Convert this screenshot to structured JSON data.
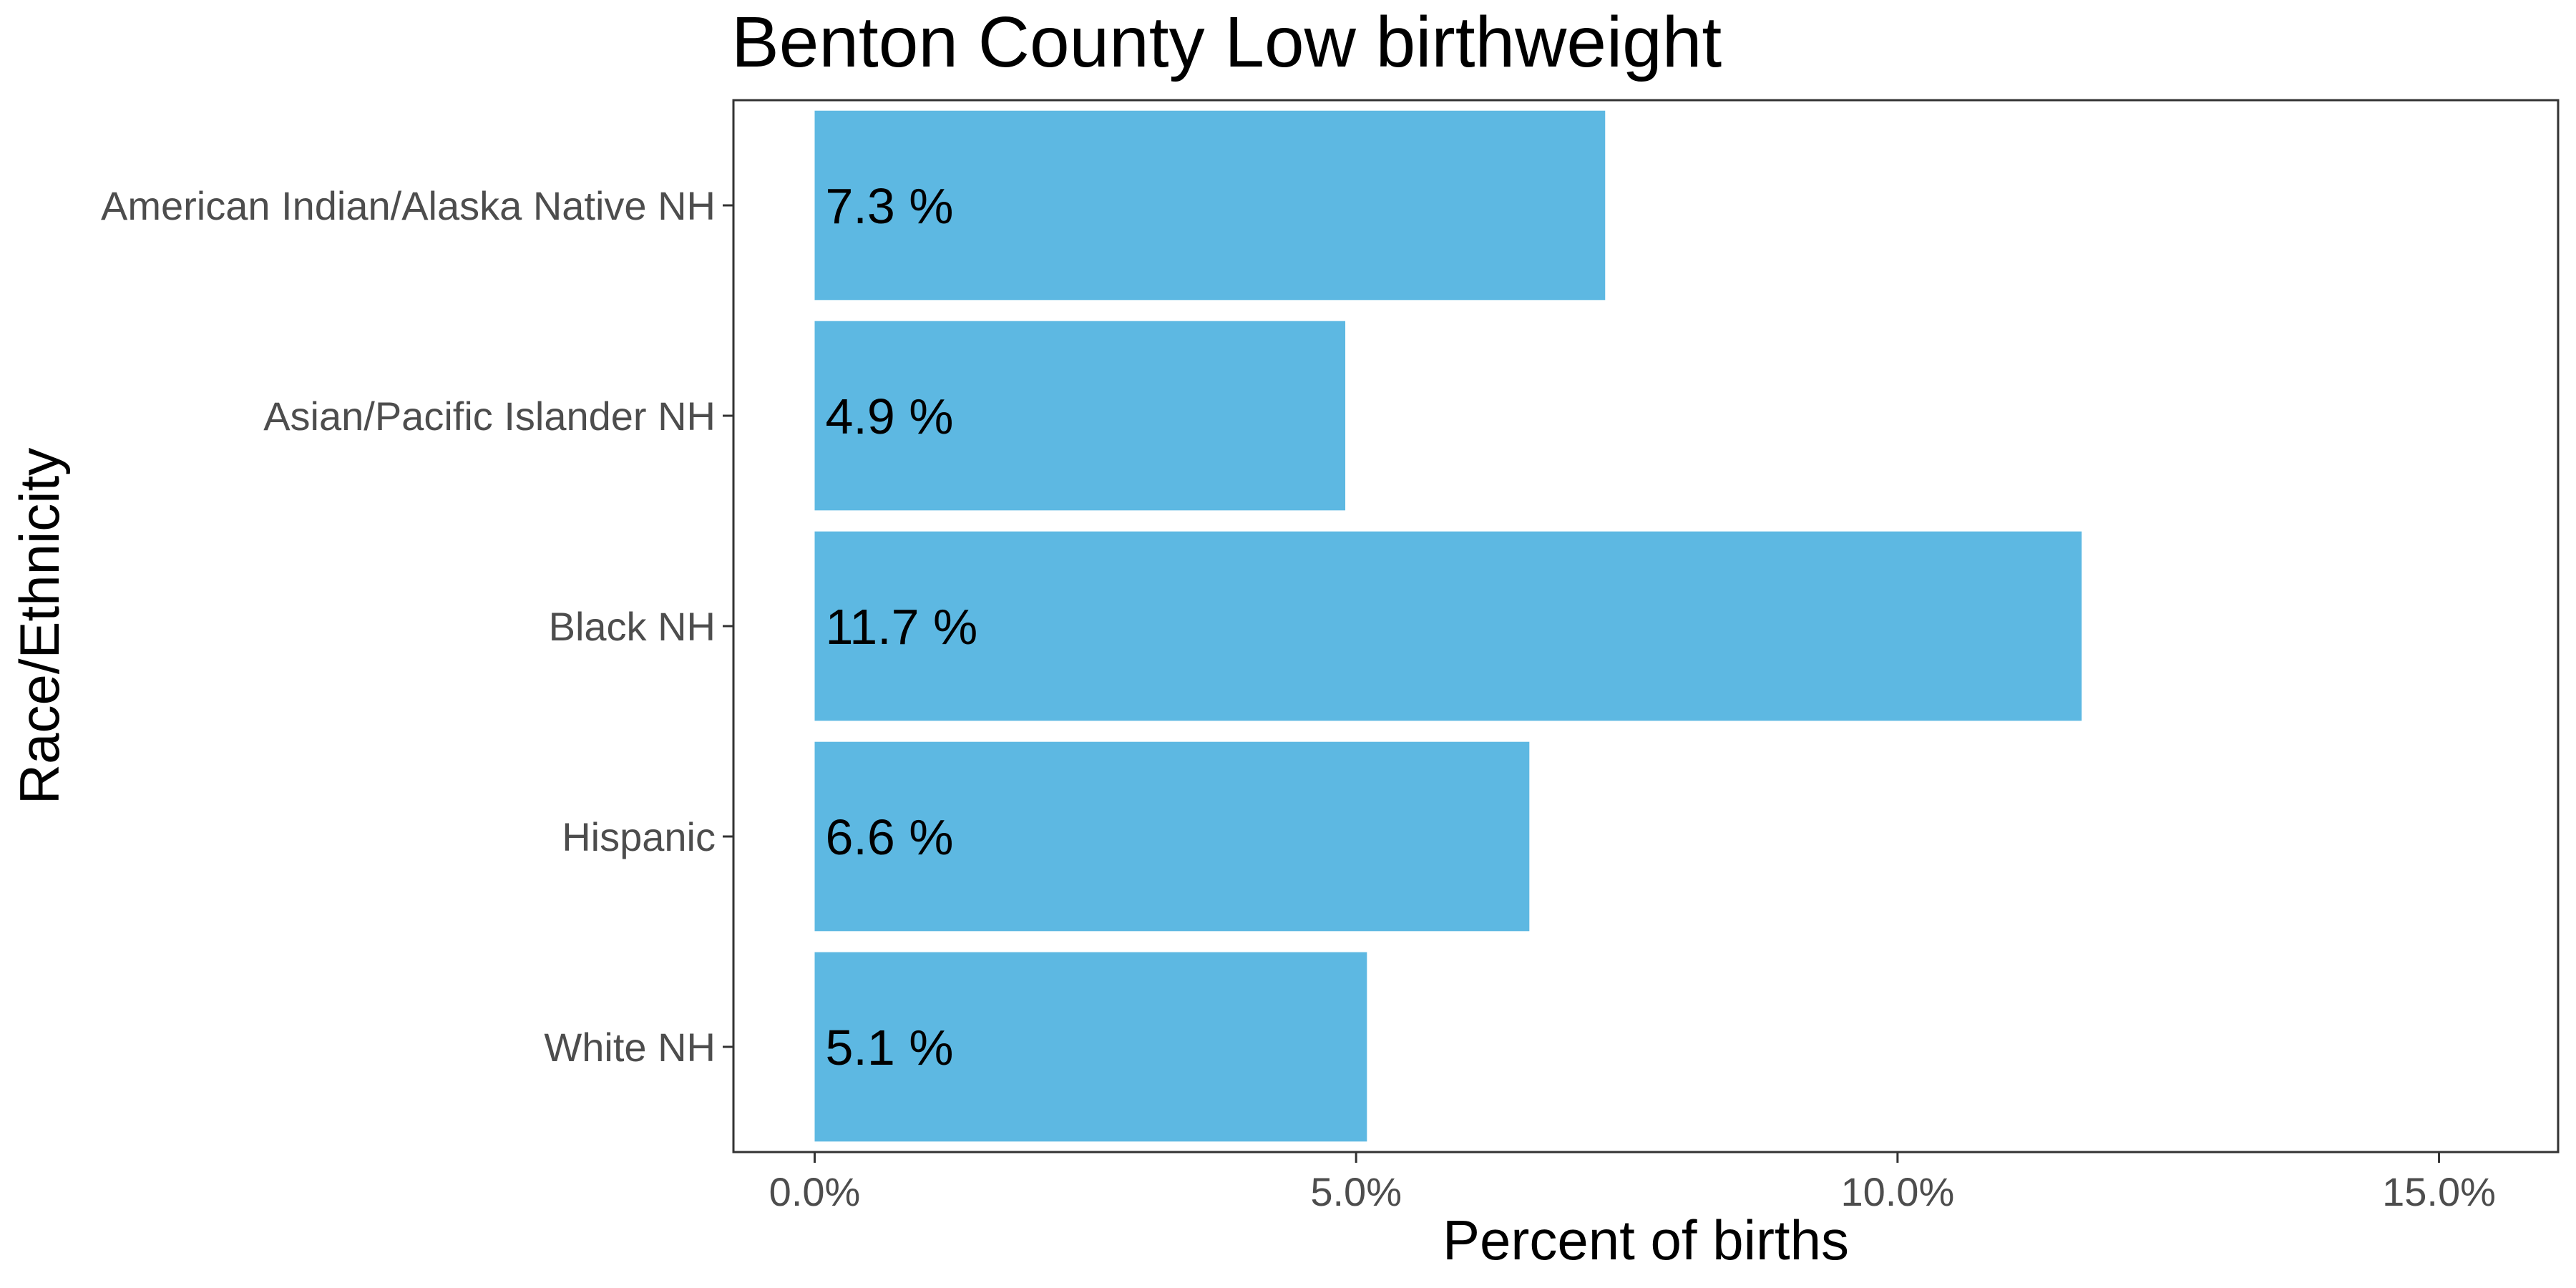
{
  "chart_data": {
    "type": "bar",
    "orientation": "horizontal",
    "title": "Benton County Low birthweight",
    "xlabel": "Percent of births",
    "ylabel": "Race/Ethnicity",
    "categories": [
      "American Indian/Alaska Native NH",
      "Asian/Pacific Islander NH",
      "Black NH",
      "Hispanic",
      "White NH"
    ],
    "values": [
      7.3,
      4.9,
      11.7,
      6.6,
      5.1
    ],
    "data_labels": [
      "7.3 %",
      "4.9 %",
      "11.7 %",
      "6.6 %",
      "5.1 %"
    ],
    "xlim": [
      -0.75,
      16.1
    ],
    "x_ticks": [
      0,
      5,
      10,
      15
    ],
    "x_tick_labels": [
      "0.0%",
      "5.0%",
      "10.0%",
      "15.0%"
    ],
    "bar_color": "#5db8e2",
    "grid": false,
    "legend": "none"
  }
}
